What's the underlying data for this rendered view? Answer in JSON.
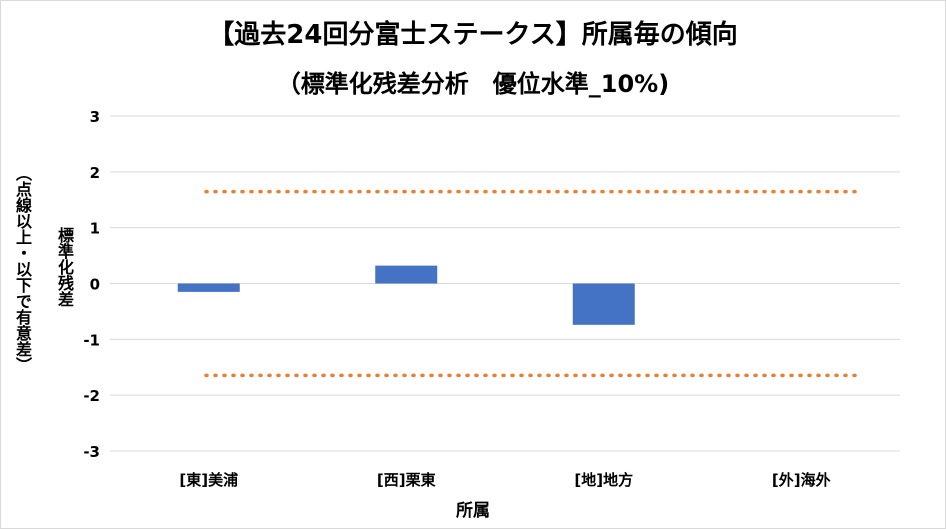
{
  "chart_data": {
    "type": "bar",
    "title": "【過去24回分富士ステークス】所属毎の傾向",
    "subtitle": "（標準化残差分析　優位水準_10%)",
    "ylabel": "標準化残差",
    "ylabel_note": "（点線以上・以下で有意差）",
    "xlabel": "所属",
    "categories": [
      "[東]美浦",
      "[西]栗東",
      "[地]地方",
      "[外]海外"
    ],
    "values": [
      -0.15,
      0.32,
      -0.74,
      0
    ],
    "ylim": [
      -3,
      3
    ],
    "yticks": [
      "3",
      "2",
      "1",
      "0",
      "-1",
      "-2",
      "-3"
    ],
    "thresholds": [
      1.645,
      -1.645
    ],
    "grid": true,
    "colors": {
      "bar": "#4472c4",
      "threshold": "#ed7d31",
      "grid": "#d9d9d9"
    }
  }
}
